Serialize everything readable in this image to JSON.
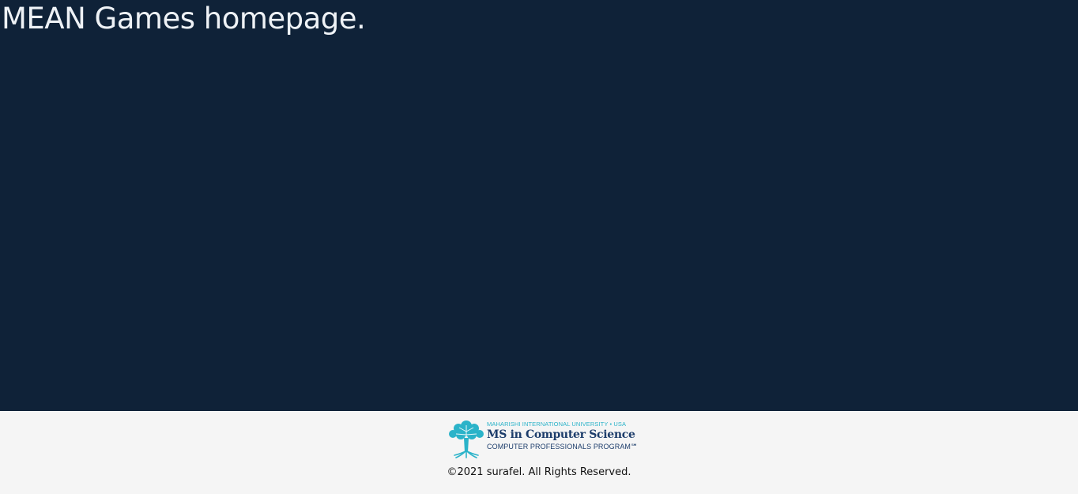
{
  "main": {
    "title": "MEAN Games homepage."
  },
  "footer": {
    "logo": {
      "university": "MAHARISHI INTERNATIONAL UNIVERSITY • USA",
      "program_title": "MS in Computer Science",
      "program_subtitle": "COMPUTER PROFESSIONALS PROGRAM℠",
      "icon": "tree-icon"
    },
    "copyright": "©2021 surafel. All Rights Reserved."
  },
  "colors": {
    "main_background": "#0f2238",
    "footer_background": "#f5f5f5",
    "title_text": "#eef2f6",
    "logo_teal": "#2bb3c9",
    "logo_navy": "#1d3d6b"
  }
}
